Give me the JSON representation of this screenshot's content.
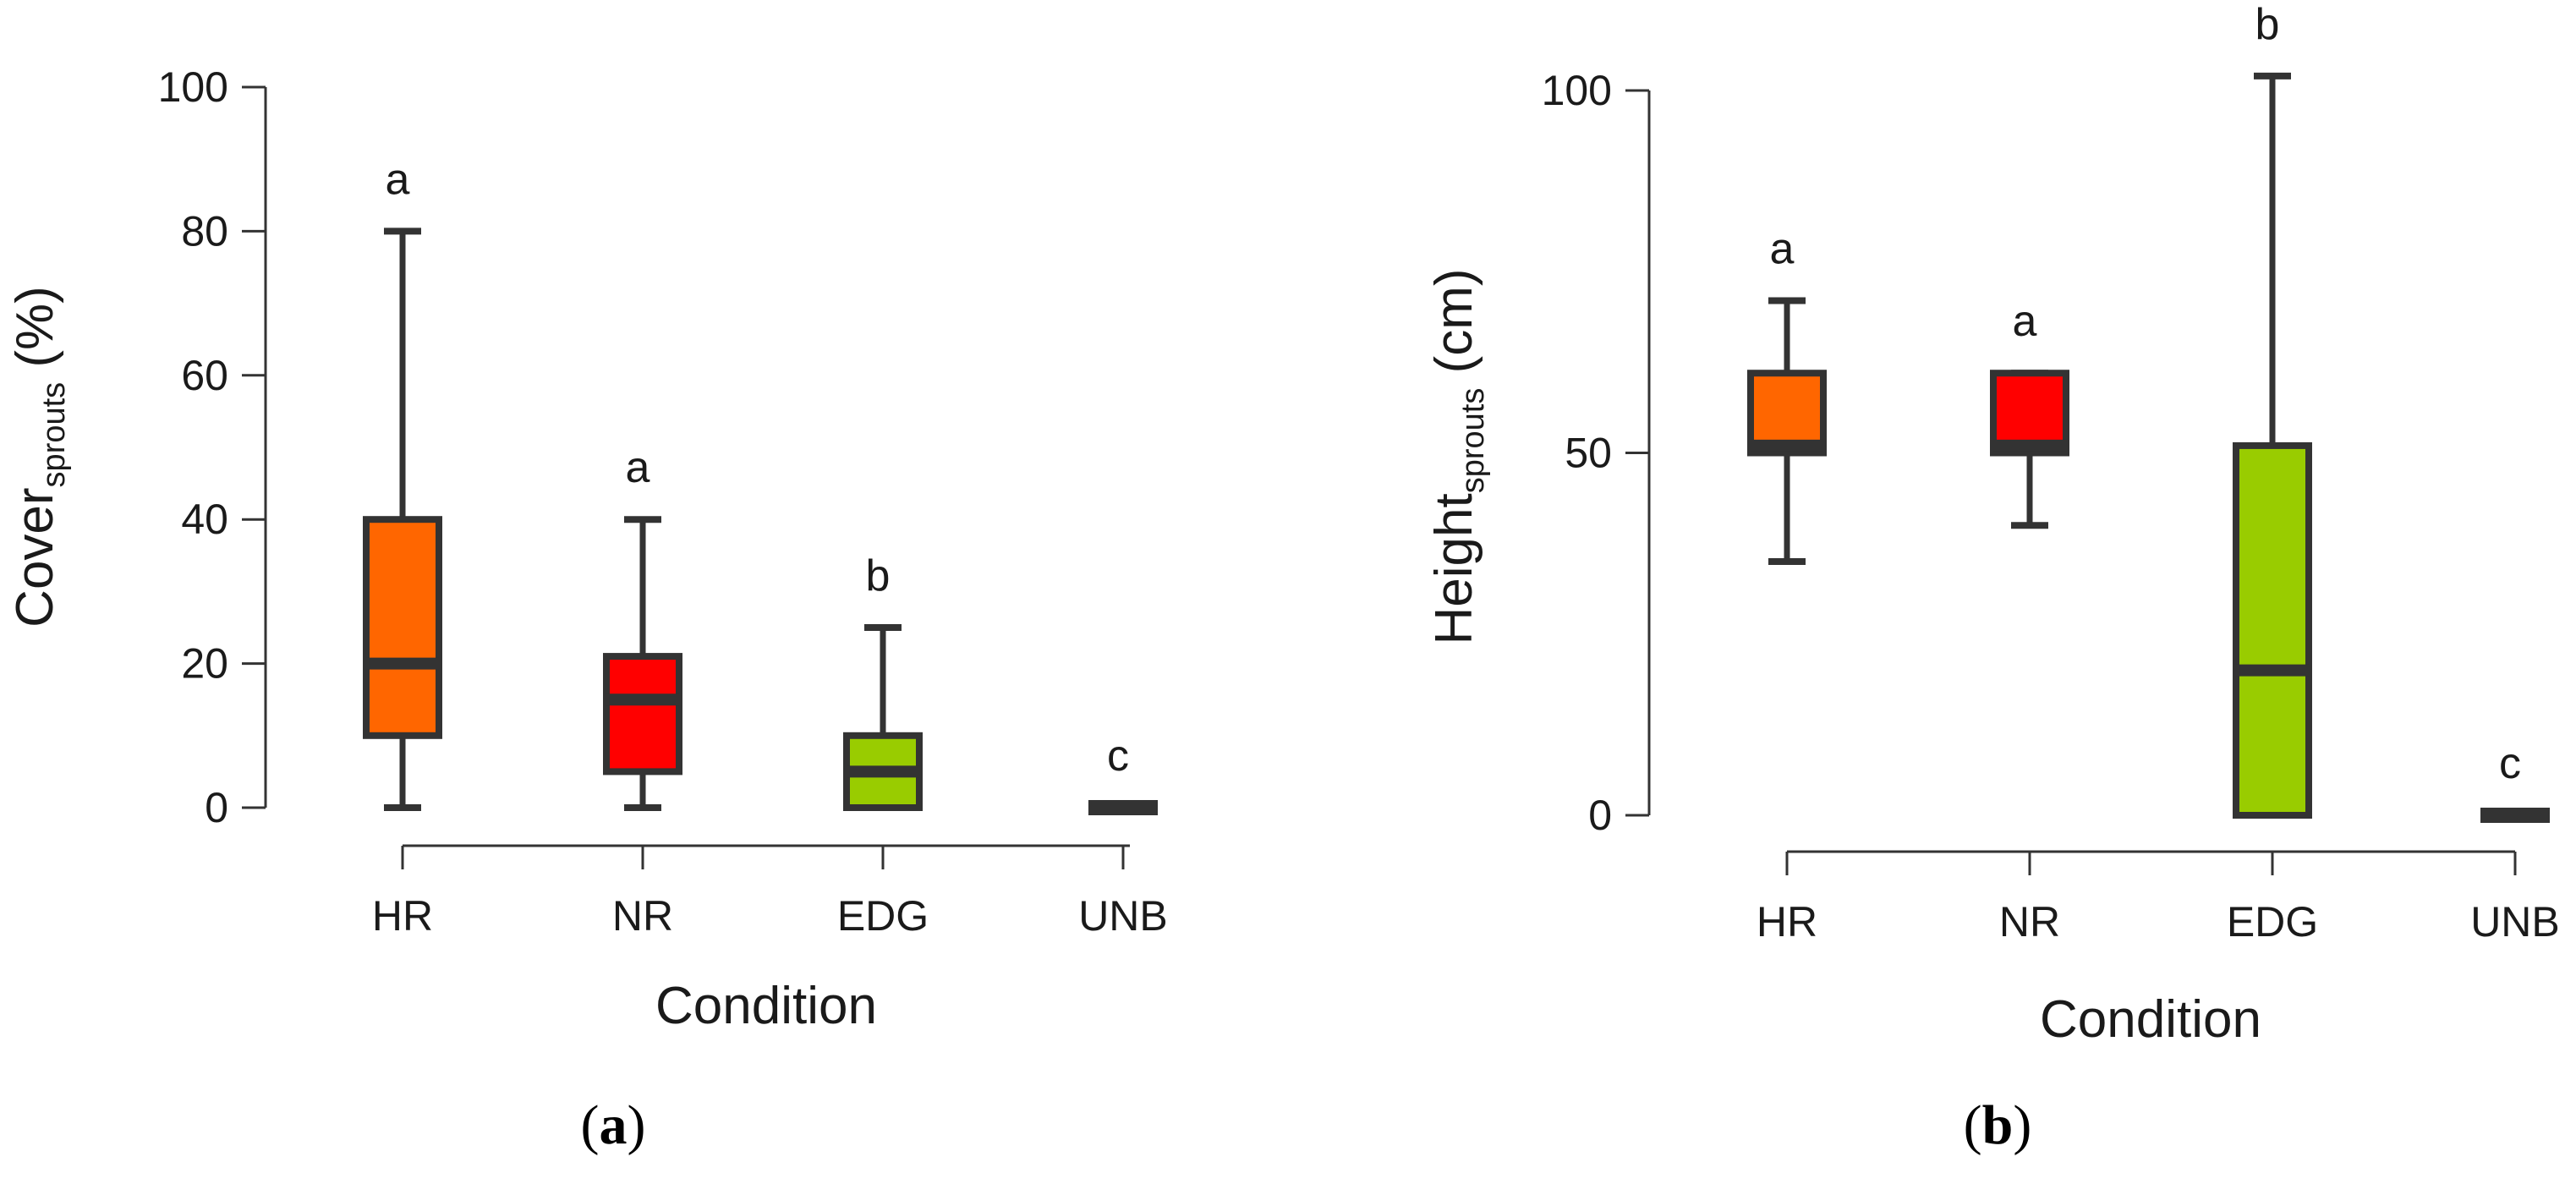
{
  "chart_data": [
    {
      "type": "boxplot",
      "panel_label": {
        "open": "(",
        "letter": "a",
        "close": ")"
      },
      "xlabel": "Condition",
      "ylabel": {
        "main": "Cover",
        "sub": "sprouts",
        "unit": " (%)"
      },
      "ylim": [
        0,
        100
      ],
      "yticks": [
        0,
        20,
        40,
        60,
        80,
        100
      ],
      "categories": [
        "HR",
        "NR",
        "EDG",
        "UNB"
      ],
      "boxes": [
        {
          "category": "HR",
          "min": 0,
          "q1": 10,
          "median": 20,
          "q3": 40,
          "max": 80,
          "color": "#ff6600",
          "group": "a"
        },
        {
          "category": "NR",
          "min": 0,
          "q1": 5,
          "median": 15,
          "q3": 21,
          "max": 40,
          "color": "#ff0000",
          "group": "a"
        },
        {
          "category": "EDG",
          "min": 0,
          "q1": 0,
          "median": 5,
          "q3": 10,
          "max": 25,
          "color": "#99cc00",
          "group": "b"
        },
        {
          "category": "UNB",
          "min": 0,
          "q1": 0,
          "median": 0,
          "q3": 0,
          "max": 0,
          "color": "#333333",
          "group": "c"
        }
      ]
    },
    {
      "type": "boxplot",
      "panel_label": {
        "open": "(",
        "letter": "b",
        "close": ")"
      },
      "xlabel": "Condition",
      "ylabel": {
        "main": "Height",
        "sub": "sprouts",
        "unit": " (cm)"
      },
      "ylim": [
        0,
        100
      ],
      "yticks": [
        0,
        50,
        100
      ],
      "categories": [
        "HR",
        "NR",
        "EDG",
        "UNB"
      ],
      "boxes": [
        {
          "category": "HR",
          "min": 35,
          "q1": 50,
          "median": 51,
          "q3": 61,
          "max": 71,
          "color": "#ff6600",
          "group": "a"
        },
        {
          "category": "NR",
          "min": 40,
          "q1": 50,
          "median": 51,
          "q3": 61,
          "max": 61,
          "color": "#ff0000",
          "group": "a"
        },
        {
          "category": "EDG",
          "min": 0,
          "q1": 0,
          "median": 20,
          "q3": 51,
          "max": 102,
          "color": "#99cc00",
          "group": "b"
        },
        {
          "category": "UNB",
          "min": 0,
          "q1": 0,
          "median": 0,
          "q3": 0,
          "max": 0,
          "color": "#333333",
          "group": "c"
        }
      ]
    }
  ]
}
